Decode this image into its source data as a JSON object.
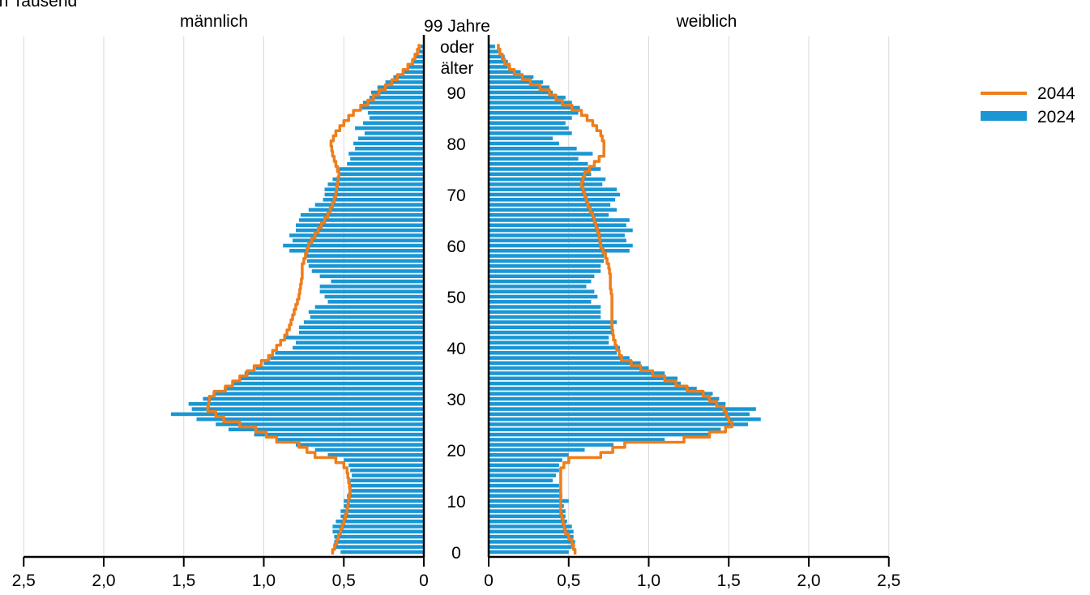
{
  "chart_data": {
    "type": "bar",
    "subtitle": "in Tausend",
    "left_title": "männlich",
    "right_title": "weiblich",
    "top_age_label_lines": [
      "99 Jahre",
      "oder",
      "älter"
    ],
    "age_tick_labels": [
      "0",
      "10",
      "20",
      "30",
      "40",
      "50",
      "60",
      "70",
      "80",
      "90"
    ],
    "age_ticks": [
      0,
      10,
      20,
      30,
      40,
      50,
      60,
      70,
      80,
      90
    ],
    "x_tick_labels_left": [
      "2,5",
      "2,0",
      "1,5",
      "1,0",
      "0,5",
      "0"
    ],
    "x_tick_labels_right": [
      "0",
      "0,5",
      "1,0",
      "1,5",
      "2,0",
      "2,5"
    ],
    "x_ticks": [
      2.5,
      2.0,
      1.5,
      1.0,
      0.5,
      0
    ],
    "xlim": [
      0,
      2.5
    ],
    "ylim": [
      0,
      99
    ],
    "grid": true,
    "legend_position": "top-right",
    "colors": {
      "bars": "#1a96d4",
      "line": "#ef7d1a",
      "grid": "#d9d9d9",
      "axis": "#000000"
    },
    "ages": [
      0,
      1,
      2,
      3,
      4,
      5,
      6,
      7,
      8,
      9,
      10,
      11,
      12,
      13,
      14,
      15,
      16,
      17,
      18,
      19,
      20,
      21,
      22,
      23,
      24,
      25,
      26,
      27,
      28,
      29,
      30,
      31,
      32,
      33,
      34,
      35,
      36,
      37,
      38,
      39,
      40,
      41,
      42,
      43,
      44,
      45,
      46,
      47,
      48,
      49,
      50,
      51,
      52,
      53,
      54,
      55,
      56,
      57,
      58,
      59,
      60,
      61,
      62,
      63,
      64,
      65,
      66,
      67,
      68,
      69,
      70,
      71,
      72,
      73,
      74,
      75,
      76,
      77,
      78,
      79,
      80,
      81,
      82,
      83,
      84,
      85,
      86,
      87,
      88,
      89,
      90,
      91,
      92,
      93,
      94,
      95,
      96,
      97,
      98,
      99
    ],
    "series": [
      {
        "name": "2024",
        "type": "bar",
        "male": [
          0.52,
          0.55,
          0.56,
          0.56,
          0.57,
          0.57,
          0.55,
          0.52,
          0.52,
          0.5,
          0.5,
          0.48,
          0.47,
          0.46,
          0.46,
          0.45,
          0.46,
          0.47,
          0.5,
          0.6,
          0.68,
          0.8,
          0.92,
          1.06,
          1.22,
          1.3,
          1.42,
          1.58,
          1.45,
          1.47,
          1.38,
          1.32,
          1.25,
          1.2,
          1.15,
          1.12,
          1.05,
          1.0,
          0.96,
          0.93,
          0.82,
          0.8,
          0.87,
          0.78,
          0.78,
          0.75,
          0.71,
          0.72,
          0.68,
          0.6,
          0.62,
          0.65,
          0.65,
          0.58,
          0.65,
          0.7,
          0.72,
          0.73,
          0.74,
          0.84,
          0.88,
          0.82,
          0.84,
          0.8,
          0.8,
          0.78,
          0.77,
          0.72,
          0.68,
          0.63,
          0.62,
          0.62,
          0.6,
          0.57,
          0.53,
          0.53,
          0.48,
          0.46,
          0.47,
          0.43,
          0.44,
          0.41,
          0.37,
          0.43,
          0.38,
          0.34,
          0.35,
          0.4,
          0.38,
          0.34,
          0.33,
          0.29,
          0.24,
          0.19,
          0.13,
          0.1,
          0.08,
          0.05,
          0.03,
          0.02
        ],
        "female": [
          0.5,
          0.52,
          0.54,
          0.53,
          0.53,
          0.52,
          0.49,
          0.48,
          0.48,
          0.47,
          0.5,
          0.46,
          0.45,
          0.44,
          0.4,
          0.42,
          0.44,
          0.44,
          0.46,
          0.5,
          0.6,
          0.78,
          1.1,
          1.38,
          1.45,
          1.62,
          1.7,
          1.63,
          1.67,
          1.48,
          1.44,
          1.4,
          1.3,
          1.2,
          1.18,
          1.1,
          1.0,
          0.95,
          0.88,
          0.8,
          0.82,
          0.75,
          0.75,
          0.78,
          0.78,
          0.8,
          0.7,
          0.7,
          0.7,
          0.64,
          0.68,
          0.66,
          0.61,
          0.64,
          0.66,
          0.7,
          0.7,
          0.72,
          0.72,
          0.88,
          0.9,
          0.86,
          0.85,
          0.9,
          0.86,
          0.88,
          0.75,
          0.8,
          0.76,
          0.79,
          0.82,
          0.8,
          0.71,
          0.73,
          0.64,
          0.7,
          0.62,
          0.56,
          0.65,
          0.55,
          0.44,
          0.4,
          0.52,
          0.5,
          0.48,
          0.52,
          0.56,
          0.57,
          0.52,
          0.48,
          0.4,
          0.38,
          0.34,
          0.28,
          0.2,
          0.12,
          0.12,
          0.1,
          0.06,
          0.04
        ]
      },
      {
        "name": "2044",
        "type": "line",
        "male": [
          [
            0,
            0.57
          ],
          [
            4,
            0.52
          ],
          [
            8,
            0.48
          ],
          [
            12,
            0.46
          ],
          [
            16,
            0.48
          ],
          [
            17,
            0.5
          ],
          [
            18,
            0.55
          ],
          [
            19,
            0.68
          ],
          [
            21,
            0.78
          ],
          [
            22,
            0.92
          ],
          [
            24,
            1.05
          ],
          [
            25,
            1.15
          ],
          [
            26,
            1.25
          ],
          [
            28,
            1.35
          ],
          [
            30,
            1.34
          ],
          [
            31,
            1.31
          ],
          [
            32,
            1.24
          ],
          [
            34,
            1.15
          ],
          [
            36,
            1.06
          ],
          [
            38,
            0.97
          ],
          [
            40,
            0.92
          ],
          [
            42,
            0.87
          ],
          [
            44,
            0.84
          ],
          [
            46,
            0.82
          ],
          [
            48,
            0.8
          ],
          [
            50,
            0.78
          ],
          [
            52,
            0.77
          ],
          [
            54,
            0.76
          ],
          [
            56,
            0.76
          ],
          [
            58,
            0.74
          ],
          [
            60,
            0.72
          ],
          [
            62,
            0.68
          ],
          [
            64,
            0.64
          ],
          [
            66,
            0.6
          ],
          [
            68,
            0.57
          ],
          [
            70,
            0.55
          ],
          [
            72,
            0.54
          ],
          [
            74,
            0.53
          ],
          [
            76,
            0.55
          ],
          [
            78,
            0.57
          ],
          [
            80,
            0.58
          ],
          [
            82,
            0.55
          ],
          [
            84,
            0.5
          ],
          [
            86,
            0.44
          ],
          [
            88,
            0.35
          ],
          [
            90,
            0.28
          ],
          [
            92,
            0.2
          ],
          [
            94,
            0.13
          ],
          [
            96,
            0.07
          ],
          [
            98,
            0.04
          ],
          [
            99,
            0.03
          ]
        ],
        "female": [
          [
            0,
            0.54
          ],
          [
            2,
            0.52
          ],
          [
            4,
            0.48
          ],
          [
            8,
            0.45
          ],
          [
            12,
            0.45
          ],
          [
            16,
            0.45
          ],
          [
            17,
            0.47
          ],
          [
            18,
            0.5
          ],
          [
            19,
            0.7
          ],
          [
            21,
            0.85
          ],
          [
            22,
            1.22
          ],
          [
            23,
            1.38
          ],
          [
            24,
            1.48
          ],
          [
            25,
            1.52
          ],
          [
            26,
            1.5
          ],
          [
            28,
            1.47
          ],
          [
            30,
            1.38
          ],
          [
            31,
            1.34
          ],
          [
            32,
            1.24
          ],
          [
            34,
            1.1
          ],
          [
            36,
            0.95
          ],
          [
            38,
            0.83
          ],
          [
            40,
            0.8
          ],
          [
            42,
            0.78
          ],
          [
            44,
            0.77
          ],
          [
            46,
            0.77
          ],
          [
            48,
            0.77
          ],
          [
            50,
            0.77
          ],
          [
            52,
            0.76
          ],
          [
            54,
            0.76
          ],
          [
            56,
            0.75
          ],
          [
            58,
            0.73
          ],
          [
            60,
            0.7
          ],
          [
            62,
            0.69
          ],
          [
            64,
            0.67
          ],
          [
            66,
            0.65
          ],
          [
            68,
            0.62
          ],
          [
            70,
            0.6
          ],
          [
            72,
            0.58
          ],
          [
            74,
            0.6
          ],
          [
            76,
            0.66
          ],
          [
            78,
            0.72
          ],
          [
            80,
            0.72
          ],
          [
            82,
            0.7
          ],
          [
            84,
            0.65
          ],
          [
            86,
            0.58
          ],
          [
            88,
            0.46
          ],
          [
            90,
            0.38
          ],
          [
            92,
            0.26
          ],
          [
            94,
            0.16
          ],
          [
            96,
            0.1
          ],
          [
            98,
            0.07
          ],
          [
            99,
            0.06
          ]
        ]
      }
    ],
    "legend": [
      {
        "label": "2044",
        "kind": "line"
      },
      {
        "label": "2024",
        "kind": "bar"
      }
    ]
  }
}
